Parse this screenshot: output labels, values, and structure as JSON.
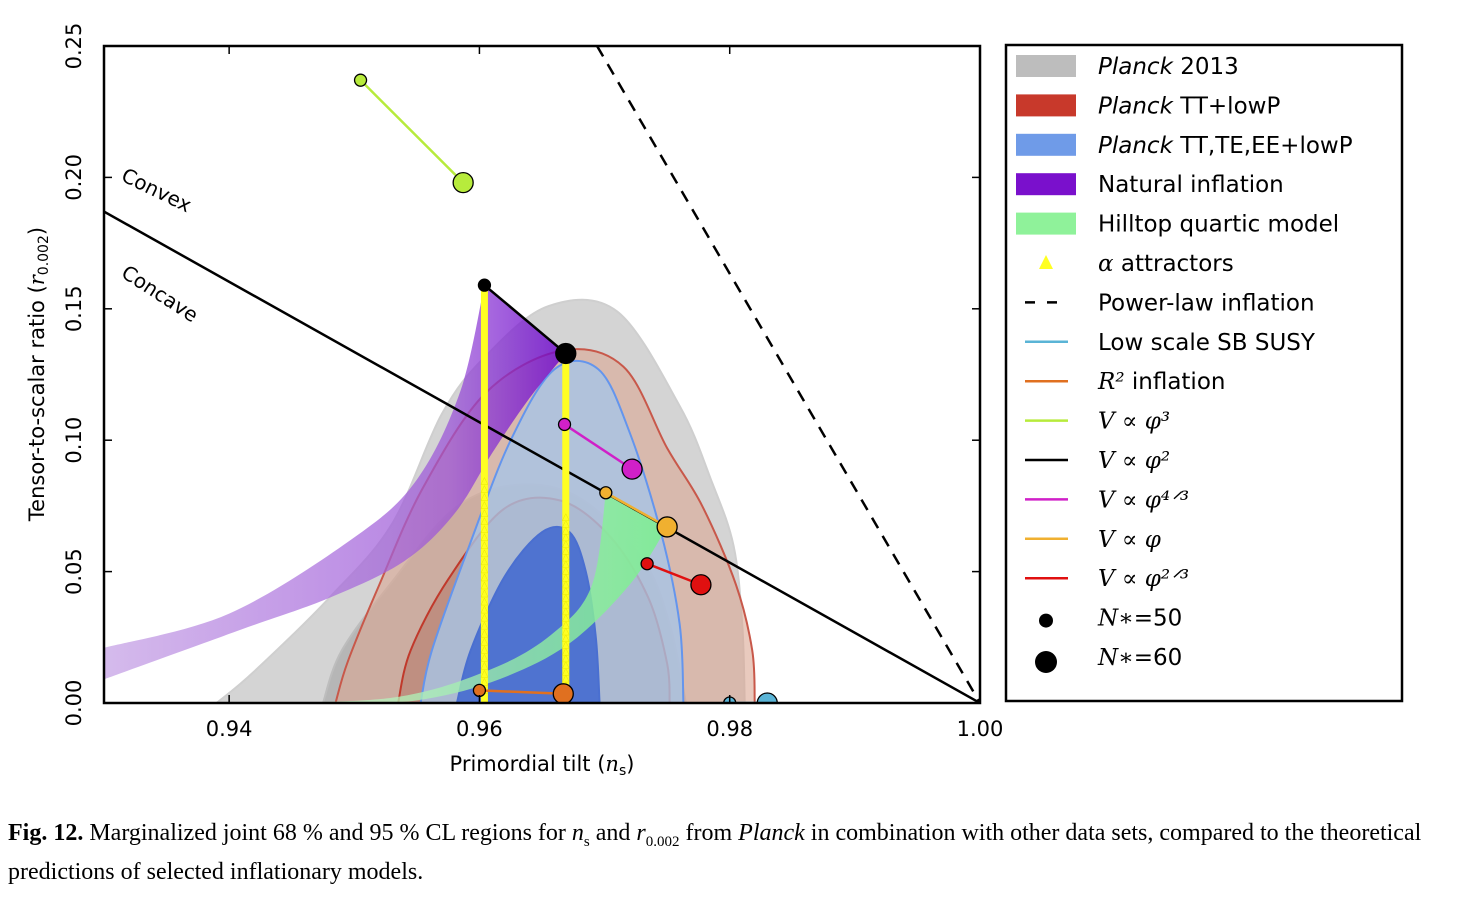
{
  "chart_data": {
    "type": "scatter",
    "xlabel": "Primordial tilt (n_s)",
    "ylabel": "Tensor-to-scalar ratio (r_0.002)",
    "xlim": [
      0.93,
      1.0
    ],
    "ylim": [
      0.0,
      0.25
    ],
    "xticks": [
      "0.94",
      "0.96",
      "0.98",
      "1.00"
    ],
    "yticks": [
      "0.00",
      "0.05",
      "0.10",
      "0.15",
      "0.20",
      "0.25"
    ],
    "annotations": [
      "Convex",
      "Concave"
    ],
    "colors": {
      "planck2013": "#b8b8b8",
      "planck_tt_lowp": "#c0392b",
      "planck_tt_te_ee_lowp": "#6495ed",
      "natural_inflation": "#7b16c8",
      "hilltop_quartic": "#90f090",
      "alpha_attractors": "#ffff00",
      "low_scale_sb_susy": "#5ab4d6",
      "r2_inflation": "#e07020",
      "phi3": "#b7eb3c",
      "phi2": "#000000",
      "phi43": "#d020c8",
      "phi1": "#f0b030",
      "phi23": "#e01010"
    },
    "legend": {
      "placement": "right",
      "entries": [
        {
          "pre": "Planck",
          "post": " 2013",
          "symbol": "patch",
          "color": "#bdbdbd"
        },
        {
          "pre": "Planck",
          "post": " TT+lowP",
          "symbol": "patch",
          "color": "#c8392b"
        },
        {
          "pre": "Planck",
          "post": " TT,TE,EE+lowP",
          "symbol": "patch",
          "color": "#6f9be8"
        },
        {
          "pre": "",
          "post": "Natural inflation",
          "symbol": "patch",
          "color": "#7a10cc"
        },
        {
          "pre": "",
          "post": "Hilltop quartic model",
          "symbol": "patch",
          "color": "#8ff29a"
        },
        {
          "pre": "α",
          "post": " attractors",
          "symbol": "triangle",
          "color": "#ffff22"
        },
        {
          "pre": "",
          "post": "Power-law inflation",
          "symbol": "dash",
          "color": "#000000"
        },
        {
          "pre": "",
          "post": "Low scale SB SUSY",
          "symbol": "line",
          "color": "#5ab4d6"
        },
        {
          "pre": "R²",
          "post": " inflation",
          "symbol": "line",
          "color": "#e07020"
        },
        {
          "pre": "V ∝ φ³",
          "post": "",
          "symbol": "line",
          "color": "#b7eb3c"
        },
        {
          "pre": "V ∝ φ²",
          "post": "",
          "symbol": "line",
          "color": "#000000"
        },
        {
          "pre": "V ∝ φ⁴ᐟ³",
          "post": "",
          "symbol": "line",
          "color": "#d020c8"
        },
        {
          "pre": "V ∝ φ",
          "post": "",
          "symbol": "line",
          "color": "#f0b030"
        },
        {
          "pre": "V ∝ φ²ᐟ³",
          "post": "",
          "symbol": "line",
          "color": "#e01010"
        },
        {
          "pre": "N∗",
          "post": "=50",
          "symbol": "dot-small",
          "color": "#000000"
        },
        {
          "pre": "N∗",
          "post": "=60",
          "symbol": "dot-large",
          "color": "#000000"
        }
      ]
    },
    "series": [
      {
        "name": "V ∝ φ³",
        "color": "#b7eb3c",
        "points": [
          {
            "x": 0.9505,
            "y": 0.237,
            "N": 50
          },
          {
            "x": 0.9587,
            "y": 0.198,
            "N": 60
          }
        ]
      },
      {
        "name": "V ∝ φ²",
        "color": "#000000",
        "points": [
          {
            "x": 0.9604,
            "y": 0.159,
            "N": 50
          },
          {
            "x": 0.9669,
            "y": 0.133,
            "N": 60
          }
        ]
      },
      {
        "name": "V ∝ φ⁴ᐟ³",
        "color": "#d020c8",
        "points": [
          {
            "x": 0.9668,
            "y": 0.106,
            "N": 50
          },
          {
            "x": 0.9722,
            "y": 0.089,
            "N": 60
          }
        ]
      },
      {
        "name": "V ∝ φ",
        "color": "#f0b030",
        "points": [
          {
            "x": 0.9701,
            "y": 0.08,
            "N": 50
          },
          {
            "x": 0.975,
            "y": 0.067,
            "N": 60
          }
        ]
      },
      {
        "name": "V ∝ φ²ᐟ³",
        "color": "#e01010",
        "points": [
          {
            "x": 0.9734,
            "y": 0.053,
            "N": 50
          },
          {
            "x": 0.9777,
            "y": 0.045,
            "N": 60
          }
        ]
      },
      {
        "name": "R² inflation",
        "color": "#e07020",
        "points": [
          {
            "x": 0.96,
            "y": 0.0048,
            "N": 50
          },
          {
            "x": 0.9667,
            "y": 0.0035,
            "N": 60
          }
        ]
      },
      {
        "name": "Low scale SB SUSY",
        "color": "#5ab4d6",
        "points": [
          {
            "x": 0.98,
            "y": 0.0,
            "N": 50
          },
          {
            "x": 0.983,
            "y": 0.0,
            "N": 60
          }
        ]
      }
    ],
    "lines": [
      {
        "name": "Power-law inflation",
        "style": "dashed",
        "points": [
          [
            0.9694,
            0.25
          ],
          [
            1.0,
            0.0
          ]
        ]
      },
      {
        "name": "Convex/Concave boundary",
        "style": "solid",
        "points": [
          [
            0.93,
            0.187
          ],
          [
            1.0,
            0.0
          ]
        ]
      }
    ],
    "alpha_attractors": [
      {
        "x": 0.9604,
        "y_from": 0.0,
        "y_to": 0.159
      },
      {
        "x": 0.9669,
        "y_from": 0.0,
        "y_to": 0.133
      }
    ],
    "regions": {
      "planck2013_95": [
        [
          0.939,
          0
        ],
        [
          0.942,
          0.012
        ],
        [
          0.948,
          0.04
        ],
        [
          0.953,
          0.068
        ],
        [
          0.957,
          0.11
        ],
        [
          0.9605,
          0.132
        ],
        [
          0.9655,
          0.151
        ],
        [
          0.971,
          0.149
        ],
        [
          0.976,
          0.113
        ],
        [
          0.9785,
          0.085
        ],
        [
          0.9803,
          0.06
        ],
        [
          0.981,
          0.03
        ],
        [
          0.9812,
          0
        ]
      ],
      "planck2013_68": [
        [
          0.9475,
          0
        ],
        [
          0.949,
          0.02
        ],
        [
          0.953,
          0.046
        ],
        [
          0.958,
          0.074
        ],
        [
          0.963,
          0.083
        ],
        [
          0.968,
          0.078
        ],
        [
          0.973,
          0.055
        ],
        [
          0.9752,
          0.03
        ],
        [
          0.9765,
          0
        ]
      ],
      "planck_tt_95": [
        [
          0.9485,
          0
        ],
        [
          0.9495,
          0.016
        ],
        [
          0.952,
          0.045
        ],
        [
          0.9555,
          0.082
        ],
        [
          0.9605,
          0.118
        ],
        [
          0.9665,
          0.134
        ],
        [
          0.9715,
          0.128
        ],
        [
          0.975,
          0.097
        ],
        [
          0.9778,
          0.075
        ],
        [
          0.9805,
          0.045
        ],
        [
          0.9818,
          0.02
        ],
        [
          0.982,
          0
        ]
      ],
      "planck_tt_68": [
        [
          0.9535,
          0
        ],
        [
          0.9545,
          0.02
        ],
        [
          0.9575,
          0.047
        ],
        [
          0.962,
          0.074
        ],
        [
          0.9665,
          0.077
        ],
        [
          0.9705,
          0.063
        ],
        [
          0.9735,
          0.04
        ],
        [
          0.975,
          0.015
        ],
        [
          0.9752,
          0
        ]
      ],
      "planck_ttteee_95": [
        [
          0.9553,
          0
        ],
        [
          0.9562,
          0.02
        ],
        [
          0.9592,
          0.06
        ],
        [
          0.9625,
          0.1
        ],
        [
          0.966,
          0.127
        ],
        [
          0.9695,
          0.127
        ],
        [
          0.972,
          0.103
        ],
        [
          0.9745,
          0.065
        ],
        [
          0.976,
          0.03
        ],
        [
          0.9763,
          0
        ]
      ],
      "planck_ttteee_68": [
        [
          0.9582,
          0
        ],
        [
          0.9593,
          0.02
        ],
        [
          0.962,
          0.048
        ],
        [
          0.965,
          0.065
        ],
        [
          0.9672,
          0.065
        ],
        [
          0.9685,
          0.05
        ],
        [
          0.9693,
          0.025
        ],
        [
          0.9696,
          0
        ]
      ]
    },
    "natural_inflation_band": {
      "upper": [
        [
          0.93,
          0.021
        ],
        [
          0.94,
          0.034
        ],
        [
          0.95,
          0.063
        ],
        [
          0.955,
          0.085
        ],
        [
          0.9585,
          0.119
        ],
        [
          0.9604,
          0.159
        ]
      ],
      "lower": [
        [
          0.9669,
          0.133
        ],
        [
          0.964,
          0.116
        ],
        [
          0.961,
          0.095
        ],
        [
          0.958,
          0.072
        ],
        [
          0.954,
          0.054
        ],
        [
          0.948,
          0.04
        ],
        [
          0.941,
          0.028
        ],
        [
          0.93,
          0.009
        ]
      ]
    },
    "hilltop_band": {
      "upper": [
        [
          0.941,
          0.0
        ],
        [
          0.953,
          0.002
        ],
        [
          0.961,
          0.013
        ],
        [
          0.966,
          0.027
        ],
        [
          0.969,
          0.045
        ],
        [
          0.9701,
          0.08
        ]
      ],
      "lower": [
        [
          0.975,
          0.067
        ],
        [
          0.972,
          0.045
        ],
        [
          0.967,
          0.022
        ],
        [
          0.961,
          0.008
        ],
        [
          0.955,
          0.001
        ],
        [
          0.95,
          0.0
        ]
      ]
    }
  },
  "caption": {
    "fig_label": "Fig. 12.",
    "part1": " Marginalized joint 68 % and 95 % CL regions for ",
    "ns_main": "n",
    "ns_sub": "s",
    "part2": " and ",
    "r_main": "r",
    "r_sub": "0.002",
    "part3": " from ",
    "planck": "Planck",
    "part4": " in combination with other data sets, compared to the theoretical predictions of selected inflationary models."
  }
}
